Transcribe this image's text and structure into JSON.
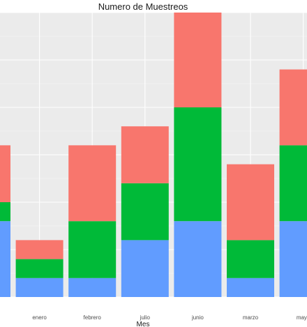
{
  "chart_data": {
    "type": "bar",
    "stacked": true,
    "title": "Numero de Muestreos",
    "xlabel": "Mes",
    "ylabel": "",
    "categories": [
      "",
      "enero",
      "febrero",
      "julio",
      "junio",
      "marzo",
      "mayo"
    ],
    "ylim": [
      0,
      15
    ],
    "grid": true,
    "legend": "none",
    "series": [
      {
        "color": "#619CFF",
        "values": [
          4,
          1,
          1,
          3,
          4,
          1,
          4
        ]
      },
      {
        "color": "#00BA38",
        "values": [
          1,
          1,
          3,
          3,
          6,
          2,
          4
        ]
      },
      {
        "color": "#F8766D",
        "values": [
          3,
          1,
          4,
          3,
          5,
          4,
          4
        ]
      }
    ]
  }
}
